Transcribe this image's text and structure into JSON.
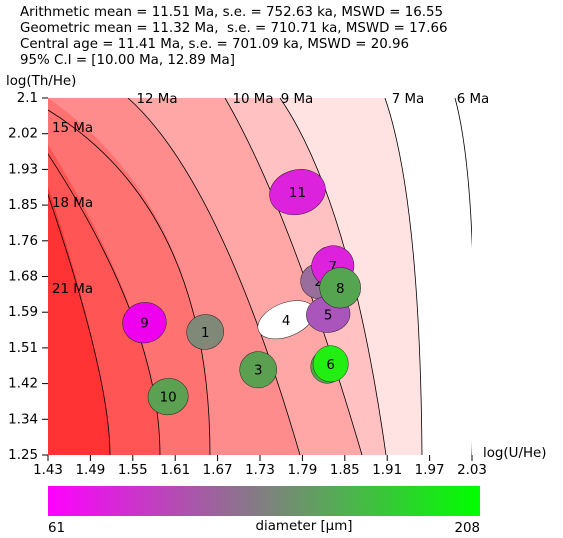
{
  "header": {
    "line1": "Arithmetic mean = 11.51 Ma, s.e. = 752.63 ka, MSWD = 16.55",
    "line2": "Geometric mean = 11.32 Ma,  s.e. = 710.71 ka, MSWD = 17.66",
    "line3": "Central age = 11.41 Ma, s.e. = 701.09 ka, MSWD = 20.96",
    "line4": "95% C.I = [10.00 Ma, 12.89 Ma]"
  },
  "chart_data": {
    "type": "scatter",
    "title": "",
    "xlabel": "log(U/He)",
    "ylabel": "log(Th/He)",
    "xlim": [
      1.43,
      2.03
    ],
    "ylim": [
      1.25,
      2.1
    ],
    "xticks": [
      "1.43",
      "1.49",
      "1.55",
      "1.61",
      "1.67",
      "1.73",
      "1.79",
      "1.85",
      "1.91",
      "1.97",
      "2.03"
    ],
    "yticks": [
      "1.25",
      "1.34",
      "1.42",
      "1.51",
      "1.59",
      "1.68",
      "1.76",
      "1.85",
      "1.93",
      "2.02",
      "2.1"
    ],
    "isochrons": [
      {
        "label": "21 Ma",
        "color": "#ff3333"
      },
      {
        "label": "18 Ma",
        "color": "#ff5555"
      },
      {
        "label": "15 Ma",
        "color": "#ff7272"
      },
      {
        "label": "12 Ma",
        "color": "#ff8c8c"
      },
      {
        "label": "10 Ma",
        "color": "#ffa7a7"
      },
      {
        "label": "9 Ma",
        "color": "#ffc1c1"
      },
      {
        "label": "7 Ma",
        "color": "#ffe2e2"
      },
      {
        "label": "6 Ma",
        "color": "#ffffff"
      }
    ],
    "grains": [
      {
        "label": "1",
        "x": 1.6525,
        "y": 1.543,
        "rx": 0.0263,
        "ry": 0.0415,
        "angle": -10,
        "color": "#808878"
      },
      {
        "label": "2",
        "x": 1.813,
        "y": 1.664,
        "rx": 0.0255,
        "ry": 0.0415,
        "angle": -5,
        "color": "#9a6e9c"
      },
      {
        "label": "3",
        "x": 1.7275,
        "y": 1.453,
        "rx": 0.0262,
        "ry": 0.0432,
        "angle": -5,
        "color": "#5aa050"
      },
      {
        "label": "4",
        "x": 1.767,
        "y": 1.572,
        "rx": 0.042,
        "ry": 0.04,
        "angle": -22,
        "color": "#ffffff"
      },
      {
        "label": "5",
        "x": 1.8265,
        "y": 1.585,
        "rx": 0.031,
        "ry": 0.0432,
        "angle": -5,
        "color": "#aa55bb"
      },
      {
        "label": "6",
        "x": 1.825,
        "y": 1.4605,
        "rx": 0.0232,
        "ry": 0.0398,
        "angle": 0,
        "color": "#50a848"
      },
      {
        "label": "6",
        "x": 1.83,
        "y": 1.467,
        "rx": 0.025,
        "ry": 0.0432,
        "angle": 0,
        "color": "#22ee11"
      },
      {
        "label": "7",
        "x": 1.833,
        "y": 1.7,
        "rx": 0.03,
        "ry": 0.0482,
        "angle": -12,
        "color": "#dd22dd"
      },
      {
        "label": "8",
        "x": 1.8435,
        "y": 1.648,
        "rx": 0.029,
        "ry": 0.0482,
        "angle": -10,
        "color": "#54a450"
      },
      {
        "label": "9",
        "x": 1.5665,
        "y": 1.565,
        "rx": 0.031,
        "ry": 0.0482,
        "angle": -10,
        "color": "#ee00ee"
      },
      {
        "label": "10",
        "x": 1.6,
        "y": 1.389,
        "rx": 0.0285,
        "ry": 0.0432,
        "angle": -8,
        "color": "#5ca052"
      },
      {
        "label": "11",
        "x": 1.783,
        "y": 1.876,
        "rx": 0.04,
        "ry": 0.053,
        "angle": -15,
        "color": "#dd22dd"
      }
    ]
  },
  "colorbar": {
    "label": "diameter [μm]",
    "min_label": "61",
    "max_label": "208",
    "min_color": "#ff00ff",
    "mid_color": "#808080",
    "max_color": "#00ff00"
  }
}
